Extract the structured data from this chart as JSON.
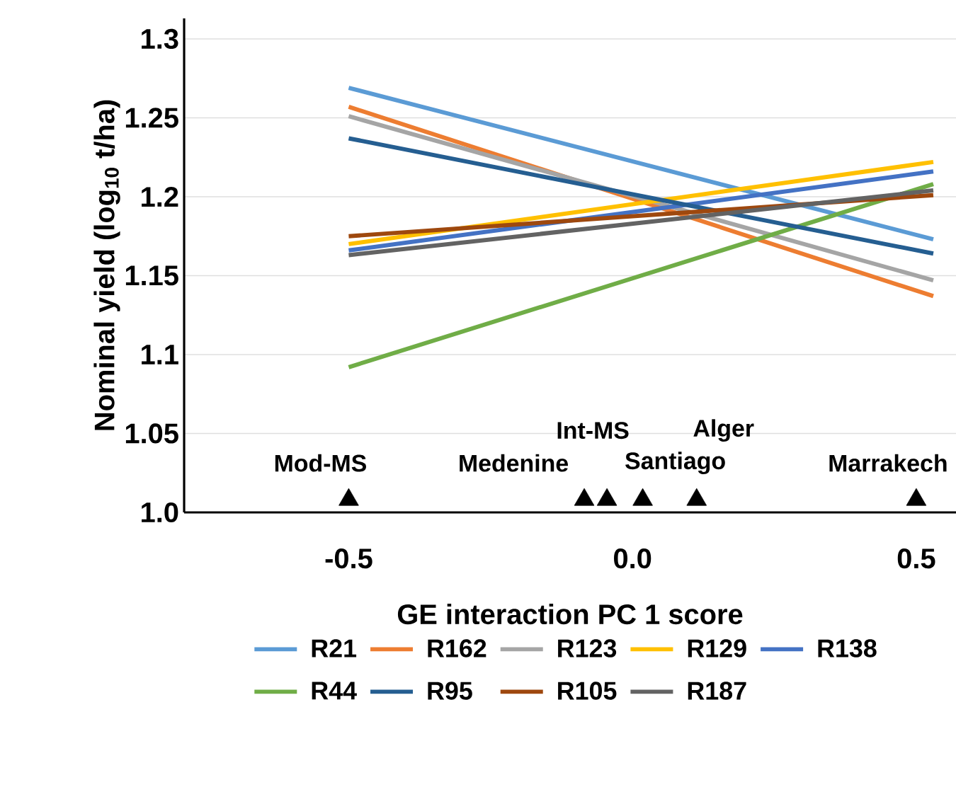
{
  "chart_data": {
    "type": "line",
    "xlabel": "GE interaction PC 1 score",
    "ylabel": "Nominal yield (log$_{10}$ t/ha)",
    "x": [
      -0.5,
      0.53
    ],
    "xlim": [
      -0.79,
      0.57
    ],
    "xticks": [
      -0.5,
      {
        "value": 0,
        "label": "0.0"
      },
      0.5
    ],
    "ylim": [
      1,
      1.313
    ],
    "yticks": [
      {
        "value": 1,
        "label": "1.0"
      },
      1.05,
      1.1,
      1.15,
      1.2,
      1.25,
      1.3
    ],
    "grid": "y",
    "legend": "bottom",
    "marker": "none",
    "line_style": "solid",
    "series": [
      {
        "name": "R21",
        "color": "#5b9bd5",
        "values": [
          1.269,
          1.173
        ]
      },
      {
        "name": "R162",
        "color": "#ed7d31",
        "values": [
          1.257,
          1.137
        ]
      },
      {
        "name": "R123",
        "color": "#a5a5a5",
        "values": [
          1.251,
          1.147
        ]
      },
      {
        "name": "R129",
        "color": "#ffc000",
        "values": [
          1.17,
          1.222
        ]
      },
      {
        "name": "R138",
        "color": "#4472c4",
        "values": [
          1.166,
          1.216
        ]
      },
      {
        "name": "R44",
        "color": "#70ad47",
        "values": [
          1.092,
          1.208
        ]
      },
      {
        "name": "R95",
        "color": "#255e91",
        "values": [
          1.237,
          1.164
        ]
      },
      {
        "name": "R105",
        "color": "#9e480e",
        "values": [
          1.175,
          1.201
        ]
      },
      {
        "name": "R187",
        "color": "#636363",
        "values": [
          1.163,
          1.204
        ]
      },
      {
        "type": "scatter",
        "marker": "triangle",
        "color": "#000000",
        "x": [
          -0.5,
          -0.085,
          -0.045,
          0.018,
          0.113,
          0.5
        ],
        "values": [
          1.008,
          1.008,
          1.008,
          1.008,
          1.008,
          1.008
        ]
      }
    ],
    "annotations": [
      {
        "text": "Mod-MS",
        "x": -0.5,
        "y": 1.008
      },
      {
        "text": "Medenine",
        "x": -0.085,
        "y": 1.008
      },
      {
        "text": "Int-MS",
        "x": -0.045,
        "y": 1.008
      },
      {
        "text": "Santiago",
        "x": 0.018,
        "y": 1.008
      },
      {
        "text": "Alger",
        "x": 0.113,
        "y": 1.008
      },
      {
        "text": "Marrakech",
        "x": 0.5,
        "y": 1.008
      }
    ]
  }
}
